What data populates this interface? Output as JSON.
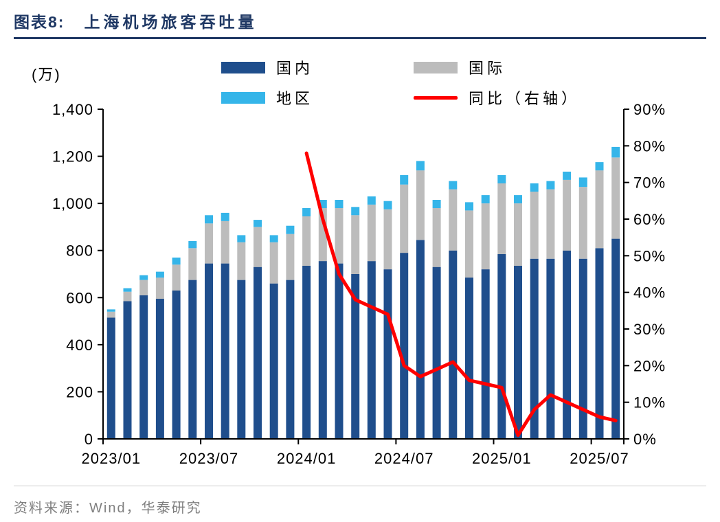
{
  "header": {
    "title_prefix": "图表8:",
    "title_text": "上海机场旅客吞吐量"
  },
  "footer": {
    "source": "资料来源：Wind，华泰研究"
  },
  "legend": {
    "items": [
      {
        "label": "国内",
        "type": "bar",
        "color": "#1f4e8c"
      },
      {
        "label": "国际",
        "type": "bar",
        "color": "#bcbcbc"
      },
      {
        "label": "地区",
        "type": "bar",
        "color": "#35b5e9"
      },
      {
        "label": "同比（右轴）",
        "type": "line",
        "color": "#ff0000"
      }
    ]
  },
  "chart_data": {
    "type": "bar",
    "subtype": "stacked-bars-with-line",
    "title": "上海机场旅客吞吐量",
    "unit_label": "(万)",
    "categories": [
      "2023/01",
      "2023/02",
      "2023/03",
      "2023/04",
      "2023/05",
      "2023/06",
      "2023/07",
      "2023/08",
      "2023/09",
      "2023/10",
      "2023/11",
      "2023/12",
      "2024/01",
      "2024/02",
      "2024/03",
      "2024/04",
      "2024/05",
      "2024/06",
      "2024/07",
      "2024/08",
      "2024/09",
      "2024/10",
      "2024/11",
      "2024/12",
      "2025/01",
      "2025/02",
      "2025/03",
      "2025/04",
      "2025/05",
      "2025/06",
      "2025/07",
      "2025/08"
    ],
    "series": [
      {
        "name": "国内",
        "key": "domestic",
        "type": "bar",
        "color": "#1f4e8c",
        "values": [
          515,
          585,
          610,
          595,
          630,
          675,
          745,
          745,
          675,
          730,
          660,
          675,
          735,
          755,
          745,
          700,
          755,
          720,
          790,
          845,
          730,
          800,
          685,
          720,
          785,
          735,
          765,
          765,
          800,
          765,
          810,
          850
        ]
      },
      {
        "name": "国际",
        "key": "international",
        "type": "bar",
        "color": "#bcbcbc",
        "values": [
          25,
          40,
          65,
          90,
          110,
          135,
          170,
          180,
          160,
          170,
          175,
          195,
          210,
          225,
          235,
          250,
          240,
          255,
          290,
          295,
          250,
          260,
          285,
          280,
          300,
          265,
          285,
          295,
          300,
          305,
          330,
          345
        ]
      },
      {
        "name": "地区",
        "key": "region",
        "type": "bar",
        "color": "#35b5e9",
        "values": [
          10,
          15,
          20,
          25,
          30,
          30,
          35,
          35,
          30,
          30,
          30,
          35,
          35,
          35,
          35,
          35,
          35,
          35,
          40,
          40,
          35,
          35,
          35,
          35,
          35,
          35,
          35,
          35,
          35,
          40,
          35,
          45
        ]
      },
      {
        "name": "同比（右轴）",
        "key": "yoy",
        "type": "line",
        "axis": "right",
        "color": "#ff0000",
        "start_index": 12,
        "values": [
          78,
          60,
          45,
          38,
          36,
          34,
          20,
          17,
          19,
          21,
          16,
          15,
          14,
          1,
          8,
          12,
          10,
          8,
          6,
          5
        ]
      }
    ],
    "left_axis": {
      "min": 0,
      "max": 1400,
      "step": 200,
      "tick_labels": [
        "0",
        "200",
        "400",
        "600",
        "800",
        "1,000",
        "1,200",
        "1,400"
      ]
    },
    "right_axis": {
      "min": 0,
      "max": 90,
      "step": 10,
      "tick_labels": [
        "0%",
        "10%",
        "20%",
        "30%",
        "40%",
        "50%",
        "60%",
        "70%",
        "80%",
        "90%"
      ]
    },
    "x_tick_every": 6,
    "x_tick_labels": [
      "2023/01",
      "2023/07",
      "2024/01",
      "2024/07",
      "2025/01",
      "2025/07"
    ],
    "grid": false,
    "legend_position": "top-center"
  }
}
